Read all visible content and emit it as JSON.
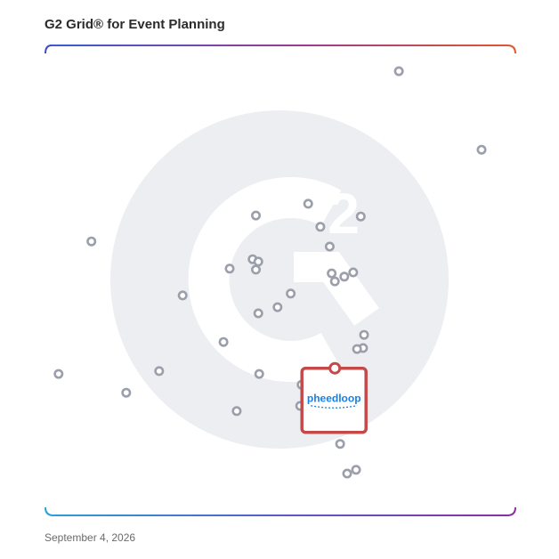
{
  "title": "G2 Grid® for Event Planning",
  "date": "September 4, 2026",
  "highlight_logo_text": "pheedloop",
  "colors": {
    "frame_left": "#3557d6",
    "frame_right": "#e0572a",
    "frame_bottom_left": "#2aa0d8",
    "frame_bottom_right": "#8a2fa0",
    "dot_stroke": "#9a9fab",
    "highlight_stroke": "#c44a4a",
    "logo_color": "#1a7fe0",
    "watermark": "#eceef1"
  },
  "chart_data": {
    "type": "scatter",
    "xlim": [
      0,
      100
    ],
    "ylim": [
      0,
      100
    ],
    "quadrant_split": {
      "x": 50,
      "y": 50
    },
    "points": [
      {
        "x": 75.2,
        "y": 94.5
      },
      {
        "x": 92.8,
        "y": 77.8
      },
      {
        "x": 9.8,
        "y": 58.3
      },
      {
        "x": 44.8,
        "y": 63.8
      },
      {
        "x": 55.9,
        "y": 66.3
      },
      {
        "x": 67.1,
        "y": 63.6
      },
      {
        "x": 58.5,
        "y": 61.4
      },
      {
        "x": 60.5,
        "y": 57.2
      },
      {
        "x": 44.1,
        "y": 54.5
      },
      {
        "x": 45.3,
        "y": 54.0
      },
      {
        "x": 39.2,
        "y": 52.5
      },
      {
        "x": 44.8,
        "y": 52.3
      },
      {
        "x": 60.9,
        "y": 51.5
      },
      {
        "x": 65.5,
        "y": 51.7
      },
      {
        "x": 63.6,
        "y": 50.8
      },
      {
        "x": 61.6,
        "y": 49.8
      },
      {
        "x": 29.2,
        "y": 46.8
      },
      {
        "x": 52.2,
        "y": 47.2
      },
      {
        "x": 49.4,
        "y": 44.3
      },
      {
        "x": 45.3,
        "y": 43.0
      },
      {
        "x": 67.8,
        "y": 38.4
      },
      {
        "x": 67.6,
        "y": 35.6
      },
      {
        "x": 66.3,
        "y": 35.4
      },
      {
        "x": 37.9,
        "y": 36.9
      },
      {
        "x": 2.8,
        "y": 30.1
      },
      {
        "x": 24.2,
        "y": 30.7
      },
      {
        "x": 45.5,
        "y": 30.1
      },
      {
        "x": 54.5,
        "y": 27.8
      },
      {
        "x": 17.2,
        "y": 26.1
      },
      {
        "x": 54.2,
        "y": 23.3
      },
      {
        "x": 40.7,
        "y": 22.2
      },
      {
        "x": 62.7,
        "y": 15.2
      },
      {
        "x": 66.1,
        "y": 9.7
      },
      {
        "x": 64.2,
        "y": 8.9
      }
    ],
    "highlight": {
      "x": 61.4,
      "y": 31.3,
      "label": "pheedloop"
    }
  }
}
